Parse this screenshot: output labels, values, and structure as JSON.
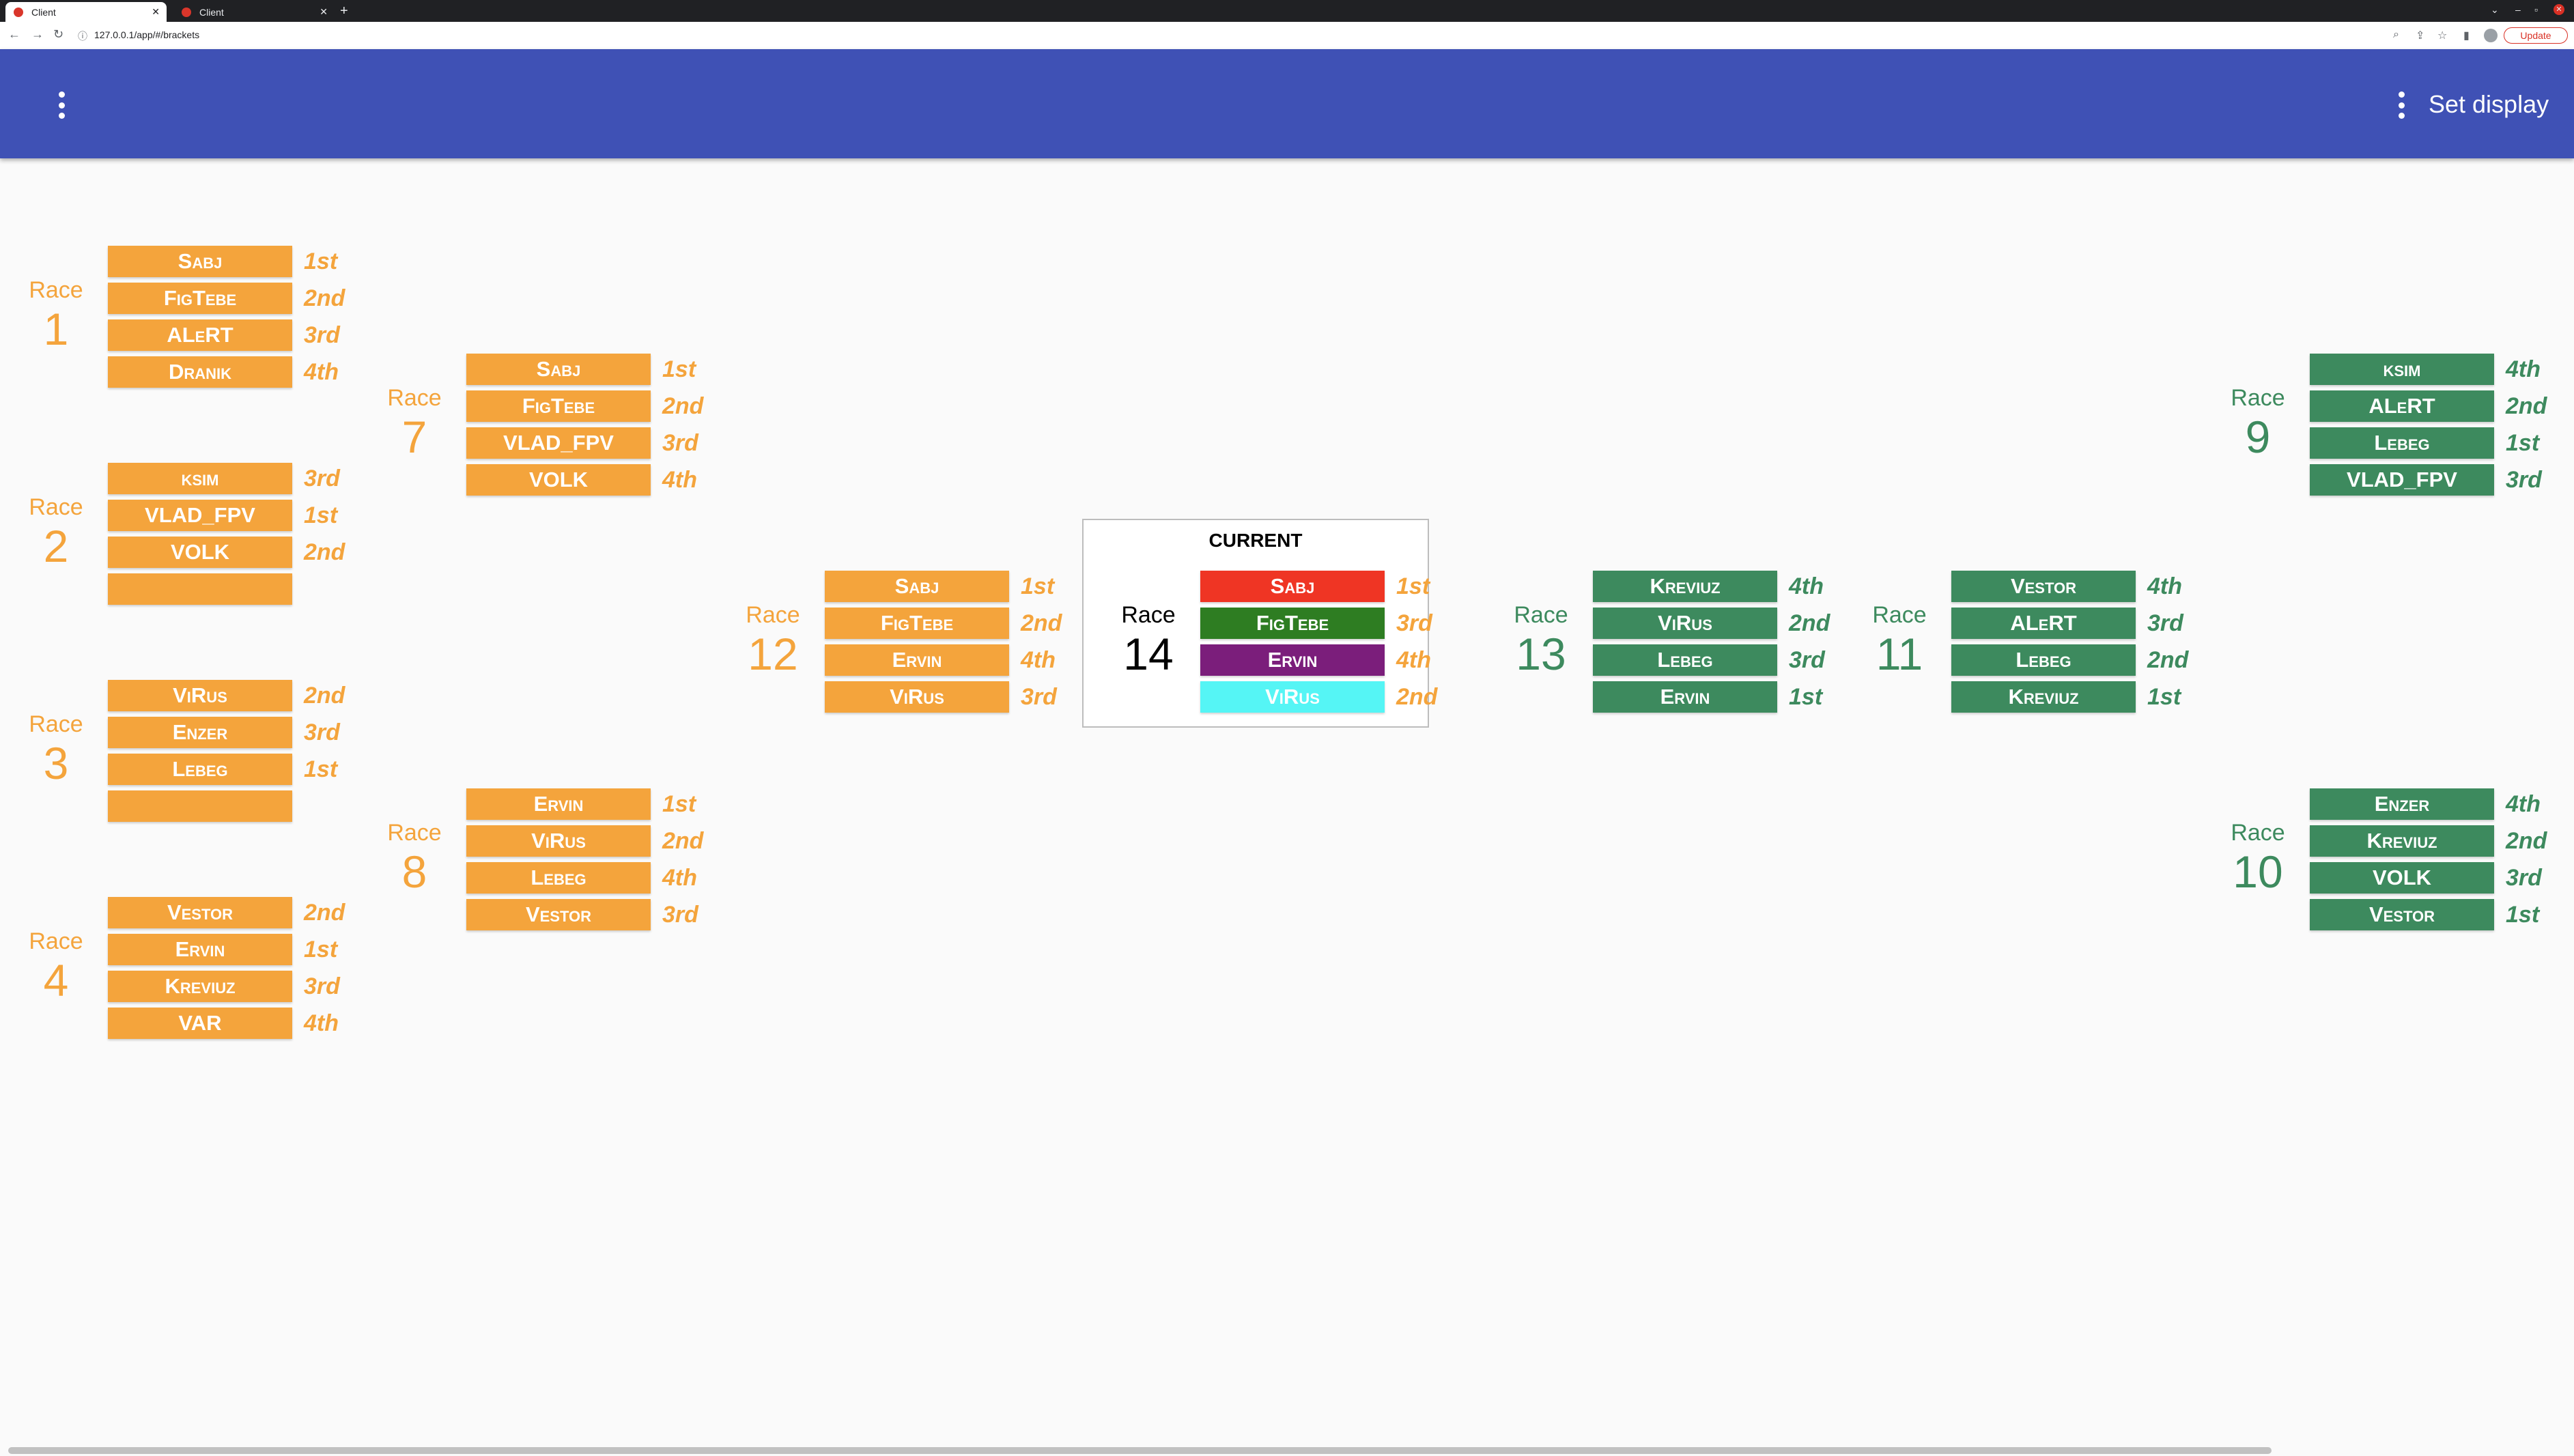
{
  "browser": {
    "tabs": [
      {
        "label": "Client"
      },
      {
        "label": "Client"
      }
    ],
    "url": "127.0.0.1/app/#/brackets",
    "update_label": "Update"
  },
  "appbar": {
    "set_display_label": "Set display"
  },
  "current": {
    "title": "CURRENT"
  },
  "colors": {
    "appbar": "#3f51b5",
    "orange": "#f4a43c",
    "green": "#3d8a5e"
  },
  "races": [
    {
      "label": "Race",
      "number": "1",
      "pilots": [
        {
          "name": "Sabj",
          "position": "1st"
        },
        {
          "name": "FigTebe",
          "position": "2nd"
        },
        {
          "name": "ALeRT",
          "position": "3rd"
        },
        {
          "name": "Dranik",
          "position": "4th"
        }
      ]
    },
    {
      "label": "Race",
      "number": "2",
      "pilots": [
        {
          "name": "ksim",
          "position": "3rd"
        },
        {
          "name": "VLAD_FPV",
          "position": "1st"
        },
        {
          "name": "VOLK",
          "position": "2nd"
        },
        {
          "name": "",
          "position": ""
        }
      ]
    },
    {
      "label": "Race",
      "number": "3",
      "pilots": [
        {
          "name": "ViRus",
          "position": "2nd"
        },
        {
          "name": "Enzer",
          "position": "3rd"
        },
        {
          "name": "Lebeg",
          "position": "1st"
        },
        {
          "name": "",
          "position": ""
        }
      ]
    },
    {
      "label": "Race",
      "number": "4",
      "pilots": [
        {
          "name": "Vestor",
          "position": "2nd"
        },
        {
          "name": "Ervin",
          "position": "1st"
        },
        {
          "name": "Kreviuz",
          "position": "3rd"
        },
        {
          "name": "VAR",
          "position": "4th"
        }
      ]
    },
    {
      "label": "Race",
      "number": "7",
      "pilots": [
        {
          "name": "Sabj",
          "position": "1st"
        },
        {
          "name": "FigTebe",
          "position": "2nd"
        },
        {
          "name": "VLAD_FPV",
          "position": "3rd"
        },
        {
          "name": "VOLK",
          "position": "4th"
        }
      ]
    },
    {
      "label": "Race",
      "number": "8",
      "pilots": [
        {
          "name": "Ervin",
          "position": "1st"
        },
        {
          "name": "ViRus",
          "position": "2nd"
        },
        {
          "name": "Lebeg",
          "position": "4th"
        },
        {
          "name": "Vestor",
          "position": "3rd"
        }
      ]
    },
    {
      "label": "Race",
      "number": "12",
      "pilots": [
        {
          "name": "Sabj",
          "position": "1st"
        },
        {
          "name": "FigTebe",
          "position": "2nd"
        },
        {
          "name": "Ervin",
          "position": "4th"
        },
        {
          "name": "ViRus",
          "position": "3rd"
        }
      ]
    },
    {
      "label": "Race",
      "number": "14",
      "pilots": [
        {
          "name": "Sabj",
          "position": "1st",
          "color": "#ef3524"
        },
        {
          "name": "FigTebe",
          "position": "3rd",
          "color": "#2e7d22"
        },
        {
          "name": "Ervin",
          "position": "4th",
          "color": "#7b1e7b"
        },
        {
          "name": "ViRus",
          "position": "2nd",
          "color": "#55f5f5"
        }
      ]
    },
    {
      "label": "Race",
      "number": "13",
      "pilots": [
        {
          "name": "Kreviuz",
          "position": "4th"
        },
        {
          "name": "ViRus",
          "position": "2nd"
        },
        {
          "name": "Lebeg",
          "position": "3rd"
        },
        {
          "name": "Ervin",
          "position": "1st"
        }
      ]
    },
    {
      "label": "Race",
      "number": "11",
      "pilots": [
        {
          "name": "Vestor",
          "position": "4th"
        },
        {
          "name": "ALeRT",
          "position": "3rd"
        },
        {
          "name": "Lebeg",
          "position": "2nd"
        },
        {
          "name": "Kreviuz",
          "position": "1st"
        }
      ]
    },
    {
      "label": "Race",
      "number": "9",
      "pilots": [
        {
          "name": "ksim",
          "position": "4th"
        },
        {
          "name": "ALeRT",
          "position": "2nd"
        },
        {
          "name": "Lebeg",
          "position": "1st"
        },
        {
          "name": "VLAD_FPV",
          "position": "3rd"
        }
      ]
    },
    {
      "label": "Race",
      "number": "10",
      "pilots": [
        {
          "name": "Enzer",
          "position": "4th"
        },
        {
          "name": "Kreviuz",
          "position": "2nd"
        },
        {
          "name": "VOLK",
          "position": "3rd"
        },
        {
          "name": "Vestor",
          "position": "1st"
        }
      ]
    }
  ]
}
